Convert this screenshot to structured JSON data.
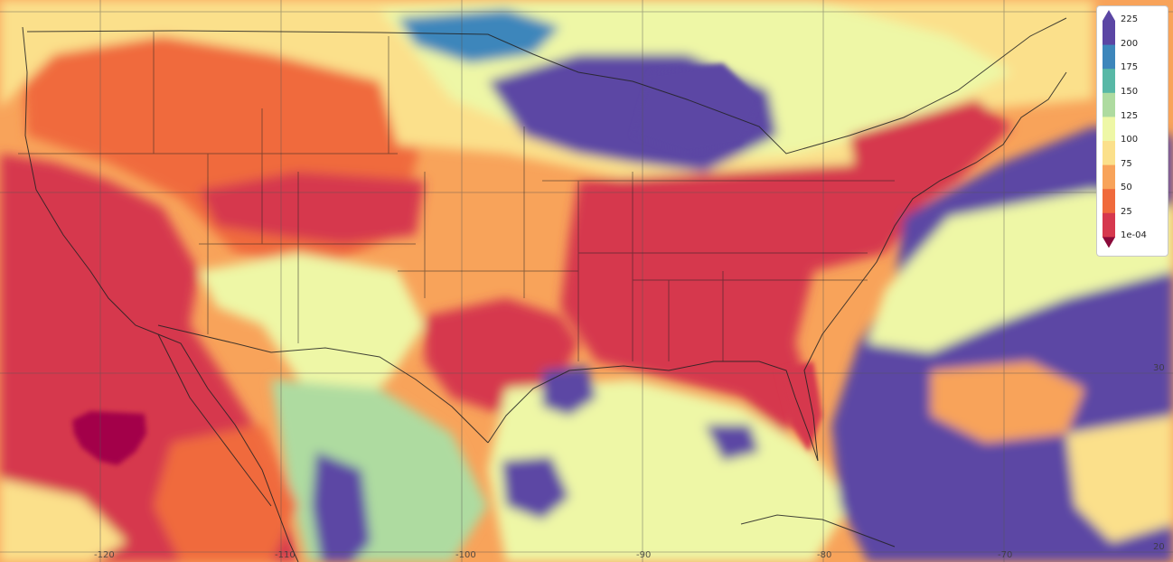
{
  "map": {
    "basemap_colors": {
      "very_dry": "#a3004a",
      "low": "#d6384e",
      "mid_low": "#f06a3c",
      "mid": "#f8a35a",
      "mid_high": "#fbe08b",
      "high": "#eef7a6",
      "higher": "#aedba0",
      "very_high": "#58b8a6",
      "highest": "#3d86bb",
      "max": "#5b46a4"
    },
    "border_color": "#222222",
    "grid_color": "#555555",
    "lon_labels": [
      "-120",
      "-110",
      "-100",
      "-90",
      "-80",
      "-70"
    ],
    "lat_labels": [
      "30",
      "20"
    ]
  },
  "legend": {
    "ticks": [
      "225",
      "200",
      "175",
      "150",
      "125",
      "100",
      "75",
      "50",
      "25",
      "1e-04"
    ],
    "colors": [
      "#5b46a4",
      "#3d86bb",
      "#58b8a6",
      "#aedba0",
      "#eef7a6",
      "#fbe08b",
      "#f8a35a",
      "#f06a3c",
      "#d6384e",
      "#a3004a"
    ],
    "arrow_top_color": "#5b46a4",
    "arrow_bottom_color": "#8a0a3a"
  }
}
